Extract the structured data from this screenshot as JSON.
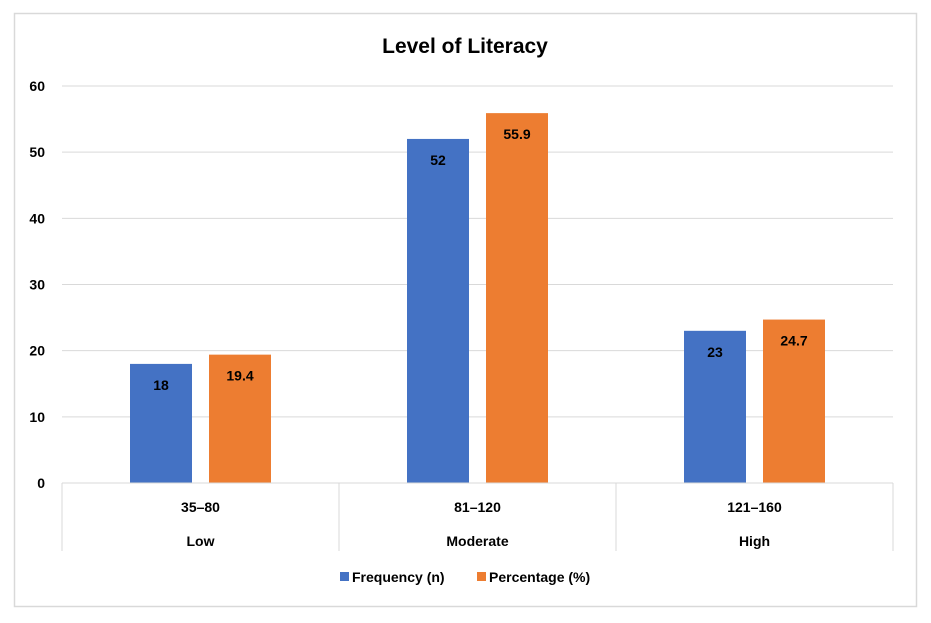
{
  "chart_data": {
    "type": "bar",
    "title": "Level of Literacy",
    "categories": [
      "35–80",
      "81–120",
      "121–160"
    ],
    "category_groups": [
      "Low",
      "Moderate",
      "High"
    ],
    "series": [
      {
        "name": "Frequency (n)",
        "values": [
          18,
          52,
          23
        ],
        "labels": [
          "18",
          "52",
          "23"
        ],
        "color": "#4472C4"
      },
      {
        "name": "Percentage (%)",
        "values": [
          19.4,
          55.9,
          24.7
        ],
        "labels": [
          "19.4",
          "55.9",
          "24.7"
        ],
        "color": "#ED7D31"
      }
    ],
    "ylim": [
      0,
      60
    ],
    "yticks": [
      "0",
      "10",
      "20",
      "30",
      "40",
      "50",
      "60"
    ],
    "xlabel": "",
    "ylabel": "",
    "grid": true,
    "legend": "bottom"
  }
}
